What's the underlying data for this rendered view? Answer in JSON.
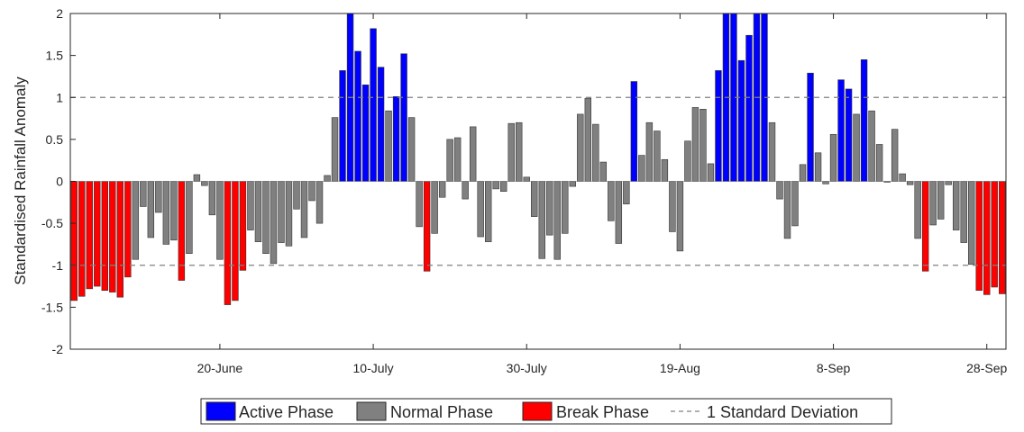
{
  "chart_data": {
    "type": "bar",
    "title": "",
    "xlabel": "",
    "ylabel": "Standardised Rainfall Anomaly",
    "ylim": [
      -2,
      2
    ],
    "xlim": [
      0.5,
      122.5
    ],
    "yticks": [
      2,
      1.5,
      1,
      0.5,
      0,
      -0.5,
      -1,
      -1.5,
      -2
    ],
    "ytick_labels": [
      "2",
      "1.5",
      "1",
      "0.5",
      "0",
      "-0.5",
      "-1",
      "-1.5",
      "-2"
    ],
    "xticks": [
      20,
      40,
      60,
      80,
      100,
      120
    ],
    "xtick_labels": [
      "20-June",
      "10-July",
      "30-July",
      "19-Aug",
      "8-Sep",
      "28-Sep"
    ],
    "grid": false,
    "reference_lines": [
      1,
      -1
    ],
    "colors": {
      "active": "#0000ff",
      "normal": "#808080",
      "break": "#ff0000",
      "reference": "#808080"
    },
    "values": [
      -1.42,
      -1.37,
      -1.28,
      -1.25,
      -1.3,
      -1.32,
      -1.38,
      -1.14,
      -0.93,
      -0.3,
      -0.67,
      -0.37,
      -0.75,
      -0.7,
      -1.18,
      -0.86,
      0.08,
      -0.05,
      -0.4,
      -0.93,
      -1.47,
      -1.42,
      -1.06,
      -0.58,
      -0.72,
      -0.86,
      -0.98,
      -0.73,
      -0.77,
      -0.33,
      -0.67,
      -0.23,
      -0.5,
      0.07,
      0.76,
      1.32,
      2.0,
      1.55,
      1.15,
      1.82,
      1.36,
      0.84,
      1.01,
      1.52,
      0.76,
      -0.54,
      -1.07,
      -0.62,
      -0.19,
      0.5,
      0.52,
      -0.21,
      0.65,
      -0.66,
      -0.72,
      -0.09,
      -0.12,
      0.69,
      0.7,
      0.05,
      -0.42,
      -0.92,
      -0.64,
      -0.93,
      -0.62,
      -0.06,
      0.8,
      0.99,
      0.68,
      0.23,
      -0.47,
      -0.74,
      -0.27,
      1.19,
      0.31,
      0.7,
      0.6,
      0.26,
      -0.6,
      -0.83,
      0.48,
      0.88,
      0.86,
      0.21,
      1.32,
      2.0,
      2.0,
      1.44,
      1.74,
      2.0,
      2.0,
      0.7,
      -0.21,
      -0.68,
      -0.53,
      0.2,
      1.29,
      0.34,
      -0.03,
      0.56,
      1.21,
      1.1,
      0.8,
      1.45,
      0.84,
      0.44,
      -0.01,
      0.62,
      0.09,
      -0.04,
      -0.68,
      -1.07,
      -0.52,
      -0.45,
      -0.04,
      -0.58,
      -0.73,
      -0.99,
      -1.3,
      -1.35,
      -1.26,
      -1.34
    ],
    "legend": {
      "placement": "bottom",
      "entries": [
        "Active Phase",
        "Normal Phase",
        "Break Phase",
        "1 Standard Deviation"
      ]
    }
  }
}
